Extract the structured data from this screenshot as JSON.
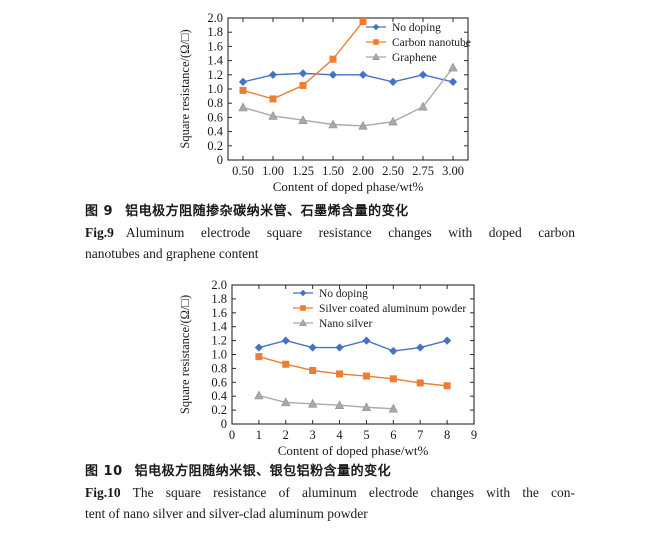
{
  "page": {
    "background": "#ffffff",
    "axis_color": "#2a2a2a",
    "text_color": "#1a1a1a"
  },
  "figure9": {
    "caption_zh_prefix": "图 9",
    "caption_zh_text": "铝电极方阻随掺杂碳纳米管、石墨烯含量的变化",
    "caption_en_prefix": "Fig.9",
    "caption_en_line1": "Aluminum electrode square resistance changes with doped carbon",
    "caption_en_line2": "nanotubes and graphene content"
  },
  "figure10": {
    "caption_zh_prefix": "图 10",
    "caption_zh_text": "铝电极方阻随纳米银、银包铝粉含量的变化",
    "caption_en_prefix": "Fig.10",
    "caption_en_line1": "The square resistance of aluminum electrode changes with the con-",
    "caption_en_line2": "tent of nano silver and silver-clad aluminum powder"
  },
  "chart_data": [
    {
      "id": "fig9",
      "type": "line",
      "title": "",
      "x_mode": "categorical",
      "categories": [
        "0.50",
        "1.00",
        "1.25",
        "1.50",
        "2.00",
        "2.50",
        "2.75",
        "3.00"
      ],
      "xlabel": "Content of doped phase/wt%",
      "ylabel": "Square resistance/(Ω/□)",
      "ylim": [
        0,
        2.0
      ],
      "yticks": [
        "0",
        "0.2",
        "0.4",
        "0.6",
        "0.8",
        "1.0",
        "1.2",
        "1.4",
        "1.6",
        "1.8",
        "2.0"
      ],
      "grid": false,
      "legend_position": "inside top-right",
      "series": [
        {
          "name": "No doping",
          "marker": "diamond",
          "color": "#4472C4",
          "values": [
            1.1,
            1.2,
            1.22,
            1.2,
            1.2,
            1.1,
            1.2,
            1.1
          ]
        },
        {
          "name": "Carbon nanotube",
          "marker": "square",
          "color": "#ED7D31",
          "values": [
            0.98,
            0.86,
            1.05,
            1.42,
            1.95
          ]
        },
        {
          "name": "Graphene",
          "marker": "triangle",
          "color": "#A9A9A9",
          "values": [
            0.74,
            0.62,
            0.56,
            0.5,
            0.48,
            0.54,
            0.75,
            1.3
          ]
        }
      ]
    },
    {
      "id": "fig10",
      "type": "line",
      "title": "",
      "x_mode": "numeric",
      "xlim": [
        0,
        9
      ],
      "xticks": [
        "0",
        "1",
        "2",
        "3",
        "4",
        "5",
        "6",
        "7",
        "8",
        "9"
      ],
      "xlabel": "Content of doped phase/wt%",
      "ylabel": "Square resistance/(Ω/□)",
      "ylim": [
        0,
        2.0
      ],
      "yticks": [
        "0",
        "0.2",
        "0.4",
        "0.6",
        "0.8",
        "1.0",
        "1.2",
        "1.4",
        "1.6",
        "1.8",
        "2.0"
      ],
      "grid": false,
      "legend_position": "inside top",
      "series": [
        {
          "name": "No doping",
          "marker": "diamond",
          "color": "#4472C4",
          "x": [
            1,
            2,
            3,
            4,
            5,
            6,
            7,
            8
          ],
          "values": [
            1.1,
            1.2,
            1.1,
            1.1,
            1.2,
            1.05,
            1.1,
            1.2
          ]
        },
        {
          "name": "Silver coated aluminum powder",
          "marker": "square",
          "color": "#ED7D31",
          "x": [
            1,
            2,
            3,
            4,
            5,
            6,
            7,
            8
          ],
          "values": [
            0.97,
            0.86,
            0.77,
            0.72,
            0.69,
            0.65,
            0.59,
            0.55
          ]
        },
        {
          "name": "Nano silver",
          "marker": "triangle",
          "color": "#A9A9A9",
          "x": [
            1,
            2,
            3,
            4,
            5,
            6
          ],
          "values": [
            0.41,
            0.31,
            0.29,
            0.27,
            0.24,
            0.22
          ]
        }
      ]
    }
  ]
}
